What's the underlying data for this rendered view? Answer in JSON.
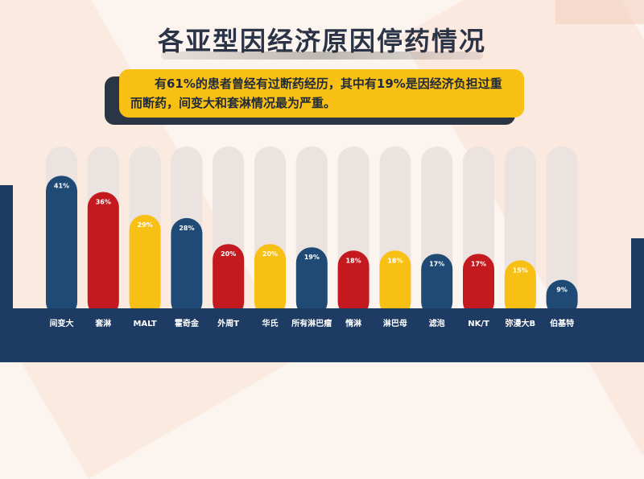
{
  "title": "各亚型因经济原因停药情况",
  "banner": "有61%的患者曾经有过断药经历，其中有19%是因经济负担过重而断药，间变大和套淋情况最为严重。",
  "colors": {
    "blue": "#1e4a75",
    "red": "#c41a1f",
    "yellow": "#f8bf15",
    "track": "#ebe3df",
    "floor": "#1e3c63"
  },
  "chart_data": {
    "type": "bar",
    "categories": [
      "间变大",
      "套淋",
      "MALT",
      "霍奇金",
      "外周T",
      "华氏",
      "所有淋巴瘤",
      "惰淋",
      "淋巴母",
      "滤泡",
      "NK/T",
      "弥漫大B",
      "伯基特"
    ],
    "values": [
      41,
      36,
      29,
      28,
      20,
      20,
      19,
      18,
      18,
      17,
      17,
      15,
      9
    ],
    "value_labels": [
      "41%",
      "36%",
      "29%",
      "28%",
      "20%",
      "20%",
      "19%",
      "18%",
      "18%",
      "17%",
      "17%",
      "15%",
      "9%"
    ],
    "colors": [
      "blue",
      "red",
      "yellow",
      "blue",
      "red",
      "yellow",
      "blue",
      "red",
      "yellow",
      "blue",
      "red",
      "yellow",
      "blue"
    ],
    "ylim": [
      0,
      50
    ],
    "xlabel": "",
    "ylabel": ""
  }
}
